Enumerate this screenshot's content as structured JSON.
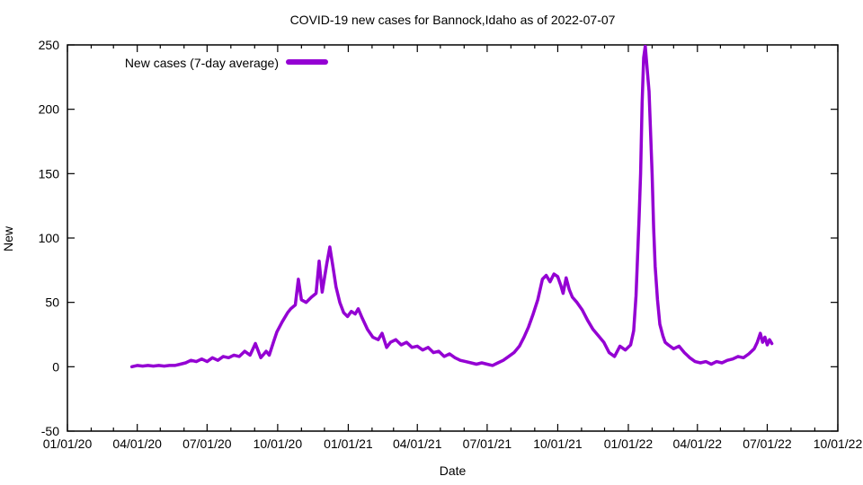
{
  "title": "COVID-19 new cases for Bannock,Idaho as of 2022-07-07",
  "legend": {
    "label": "New cases (7-day average)"
  },
  "axes": {
    "xlabel": "Date",
    "ylabel": "New"
  },
  "colors": {
    "line": "#9400D3",
    "text": "#000000",
    "border": "#000000",
    "background": "#FFFFFF"
  },
  "chart_data": {
    "type": "line",
    "title": "COVID-19 new cases for Bannock,Idaho as of 2022-07-07",
    "xlabel": "Date",
    "ylabel": "New",
    "grid": false,
    "legend_position": "top-left-inside",
    "xlim": [
      "2020-01-01",
      "2022-10-01"
    ],
    "ylim": [
      -50,
      250
    ],
    "x_major_tick_labels": [
      "01/01/20",
      "04/01/20",
      "07/01/20",
      "10/01/20",
      "01/01/21",
      "04/01/21",
      "07/01/21",
      "10/01/21",
      "01/01/22",
      "04/01/22",
      "07/01/22",
      "10/01/22"
    ],
    "x_major_tick_dates": [
      "2020-01-01",
      "2020-04-01",
      "2020-07-01",
      "2020-10-01",
      "2021-01-01",
      "2021-04-01",
      "2021-07-01",
      "2021-10-01",
      "2022-01-01",
      "2022-04-01",
      "2022-07-01",
      "2022-10-01"
    ],
    "x_minor_tick_interval_months": 1,
    "y_ticks": [
      -50,
      0,
      50,
      100,
      150,
      200,
      250
    ],
    "series": [
      {
        "name": "New cases (7-day average)",
        "color": "#9400D3",
        "points": [
          [
            "2020-03-25",
            0
          ],
          [
            "2020-04-01",
            1
          ],
          [
            "2020-04-08",
            0.5
          ],
          [
            "2020-04-15",
            1
          ],
          [
            "2020-04-22",
            0.5
          ],
          [
            "2020-04-29",
            1
          ],
          [
            "2020-05-06",
            0.5
          ],
          [
            "2020-05-13",
            1
          ],
          [
            "2020-05-20",
            1
          ],
          [
            "2020-05-27",
            2
          ],
          [
            "2020-06-03",
            3
          ],
          [
            "2020-06-10",
            5
          ],
          [
            "2020-06-17",
            4
          ],
          [
            "2020-06-24",
            6
          ],
          [
            "2020-07-01",
            4
          ],
          [
            "2020-07-08",
            7
          ],
          [
            "2020-07-15",
            5
          ],
          [
            "2020-07-22",
            8
          ],
          [
            "2020-07-29",
            7
          ],
          [
            "2020-08-05",
            9
          ],
          [
            "2020-08-12",
            8
          ],
          [
            "2020-08-19",
            12
          ],
          [
            "2020-08-26",
            9
          ],
          [
            "2020-09-02",
            18
          ],
          [
            "2020-09-09",
            7
          ],
          [
            "2020-09-16",
            12
          ],
          [
            "2020-09-20",
            9
          ],
          [
            "2020-09-26",
            20
          ],
          [
            "2020-09-30",
            27
          ],
          [
            "2020-10-07",
            35
          ],
          [
            "2020-10-14",
            42
          ],
          [
            "2020-10-18",
            45
          ],
          [
            "2020-10-24",
            48
          ],
          [
            "2020-10-28",
            68
          ],
          [
            "2020-11-01",
            52
          ],
          [
            "2020-11-07",
            50
          ],
          [
            "2020-11-14",
            54
          ],
          [
            "2020-11-20",
            57
          ],
          [
            "2020-11-24",
            82
          ],
          [
            "2020-11-28",
            58
          ],
          [
            "2020-12-04",
            80
          ],
          [
            "2020-12-08",
            93
          ],
          [
            "2020-12-12",
            78
          ],
          [
            "2020-12-16",
            62
          ],
          [
            "2020-12-21",
            50
          ],
          [
            "2020-12-26",
            42
          ],
          [
            "2020-12-31",
            39
          ],
          [
            "2021-01-05",
            43
          ],
          [
            "2021-01-10",
            41
          ],
          [
            "2021-01-14",
            45
          ],
          [
            "2021-01-19",
            38
          ],
          [
            "2021-01-26",
            29
          ],
          [
            "2021-02-02",
            23
          ],
          [
            "2021-02-09",
            21
          ],
          [
            "2021-02-14",
            26
          ],
          [
            "2021-02-20",
            15
          ],
          [
            "2021-02-25",
            19
          ],
          [
            "2021-03-04",
            21
          ],
          [
            "2021-03-11",
            17
          ],
          [
            "2021-03-18",
            19
          ],
          [
            "2021-03-25",
            15
          ],
          [
            "2021-04-01",
            16
          ],
          [
            "2021-04-08",
            13
          ],
          [
            "2021-04-15",
            15
          ],
          [
            "2021-04-22",
            11
          ],
          [
            "2021-04-29",
            12
          ],
          [
            "2021-05-06",
            8
          ],
          [
            "2021-05-13",
            10
          ],
          [
            "2021-05-20",
            7
          ],
          [
            "2021-05-27",
            5
          ],
          [
            "2021-06-03",
            4
          ],
          [
            "2021-06-10",
            3
          ],
          [
            "2021-06-17",
            2
          ],
          [
            "2021-06-24",
            3
          ],
          [
            "2021-07-01",
            2
          ],
          [
            "2021-07-08",
            1
          ],
          [
            "2021-07-15",
            3
          ],
          [
            "2021-07-22",
            5
          ],
          [
            "2021-07-29",
            8
          ],
          [
            "2021-08-05",
            11
          ],
          [
            "2021-08-12",
            16
          ],
          [
            "2021-08-18",
            23
          ],
          [
            "2021-08-24",
            31
          ],
          [
            "2021-08-30",
            41
          ],
          [
            "2021-09-05",
            52
          ],
          [
            "2021-09-11",
            68
          ],
          [
            "2021-09-16",
            71
          ],
          [
            "2021-09-21",
            66
          ],
          [
            "2021-09-26",
            72
          ],
          [
            "2021-10-01",
            70
          ],
          [
            "2021-10-05",
            63
          ],
          [
            "2021-10-08",
            57
          ],
          [
            "2021-10-12",
            69
          ],
          [
            "2021-10-16",
            60
          ],
          [
            "2021-10-20",
            54
          ],
          [
            "2021-10-26",
            50
          ],
          [
            "2021-11-02",
            44
          ],
          [
            "2021-11-09",
            36
          ],
          [
            "2021-11-16",
            29
          ],
          [
            "2021-11-23",
            24
          ],
          [
            "2021-11-30",
            19
          ],
          [
            "2021-12-07",
            11
          ],
          [
            "2021-12-14",
            8
          ],
          [
            "2021-12-21",
            16
          ],
          [
            "2021-12-28",
            13
          ],
          [
            "2022-01-04",
            17
          ],
          [
            "2022-01-08",
            28
          ],
          [
            "2022-01-11",
            55
          ],
          [
            "2022-01-13",
            85
          ],
          [
            "2022-01-15",
            115
          ],
          [
            "2022-01-17",
            150
          ],
          [
            "2022-01-19",
            205
          ],
          [
            "2022-01-21",
            240
          ],
          [
            "2022-01-23",
            249
          ],
          [
            "2022-01-26",
            228
          ],
          [
            "2022-01-28",
            214
          ],
          [
            "2022-02-01",
            150
          ],
          [
            "2022-02-03",
            108
          ],
          [
            "2022-02-05",
            78
          ],
          [
            "2022-02-08",
            52
          ],
          [
            "2022-02-11",
            33
          ],
          [
            "2022-02-15",
            24
          ],
          [
            "2022-02-18",
            19
          ],
          [
            "2022-02-22",
            17
          ],
          [
            "2022-03-01",
            14
          ],
          [
            "2022-03-08",
            16
          ],
          [
            "2022-03-15",
            11
          ],
          [
            "2022-03-22",
            7
          ],
          [
            "2022-03-29",
            4
          ],
          [
            "2022-04-05",
            3
          ],
          [
            "2022-04-12",
            4
          ],
          [
            "2022-04-19",
            2
          ],
          [
            "2022-04-26",
            4
          ],
          [
            "2022-05-03",
            3
          ],
          [
            "2022-05-10",
            5
          ],
          [
            "2022-05-17",
            6
          ],
          [
            "2022-05-24",
            8
          ],
          [
            "2022-05-31",
            7
          ],
          [
            "2022-06-07",
            10
          ],
          [
            "2022-06-14",
            14
          ],
          [
            "2022-06-18",
            19
          ],
          [
            "2022-06-22",
            26
          ],
          [
            "2022-06-25",
            19
          ],
          [
            "2022-06-28",
            23
          ],
          [
            "2022-07-01",
            17
          ],
          [
            "2022-07-04",
            21
          ],
          [
            "2022-07-07",
            18
          ]
        ]
      }
    ]
  }
}
